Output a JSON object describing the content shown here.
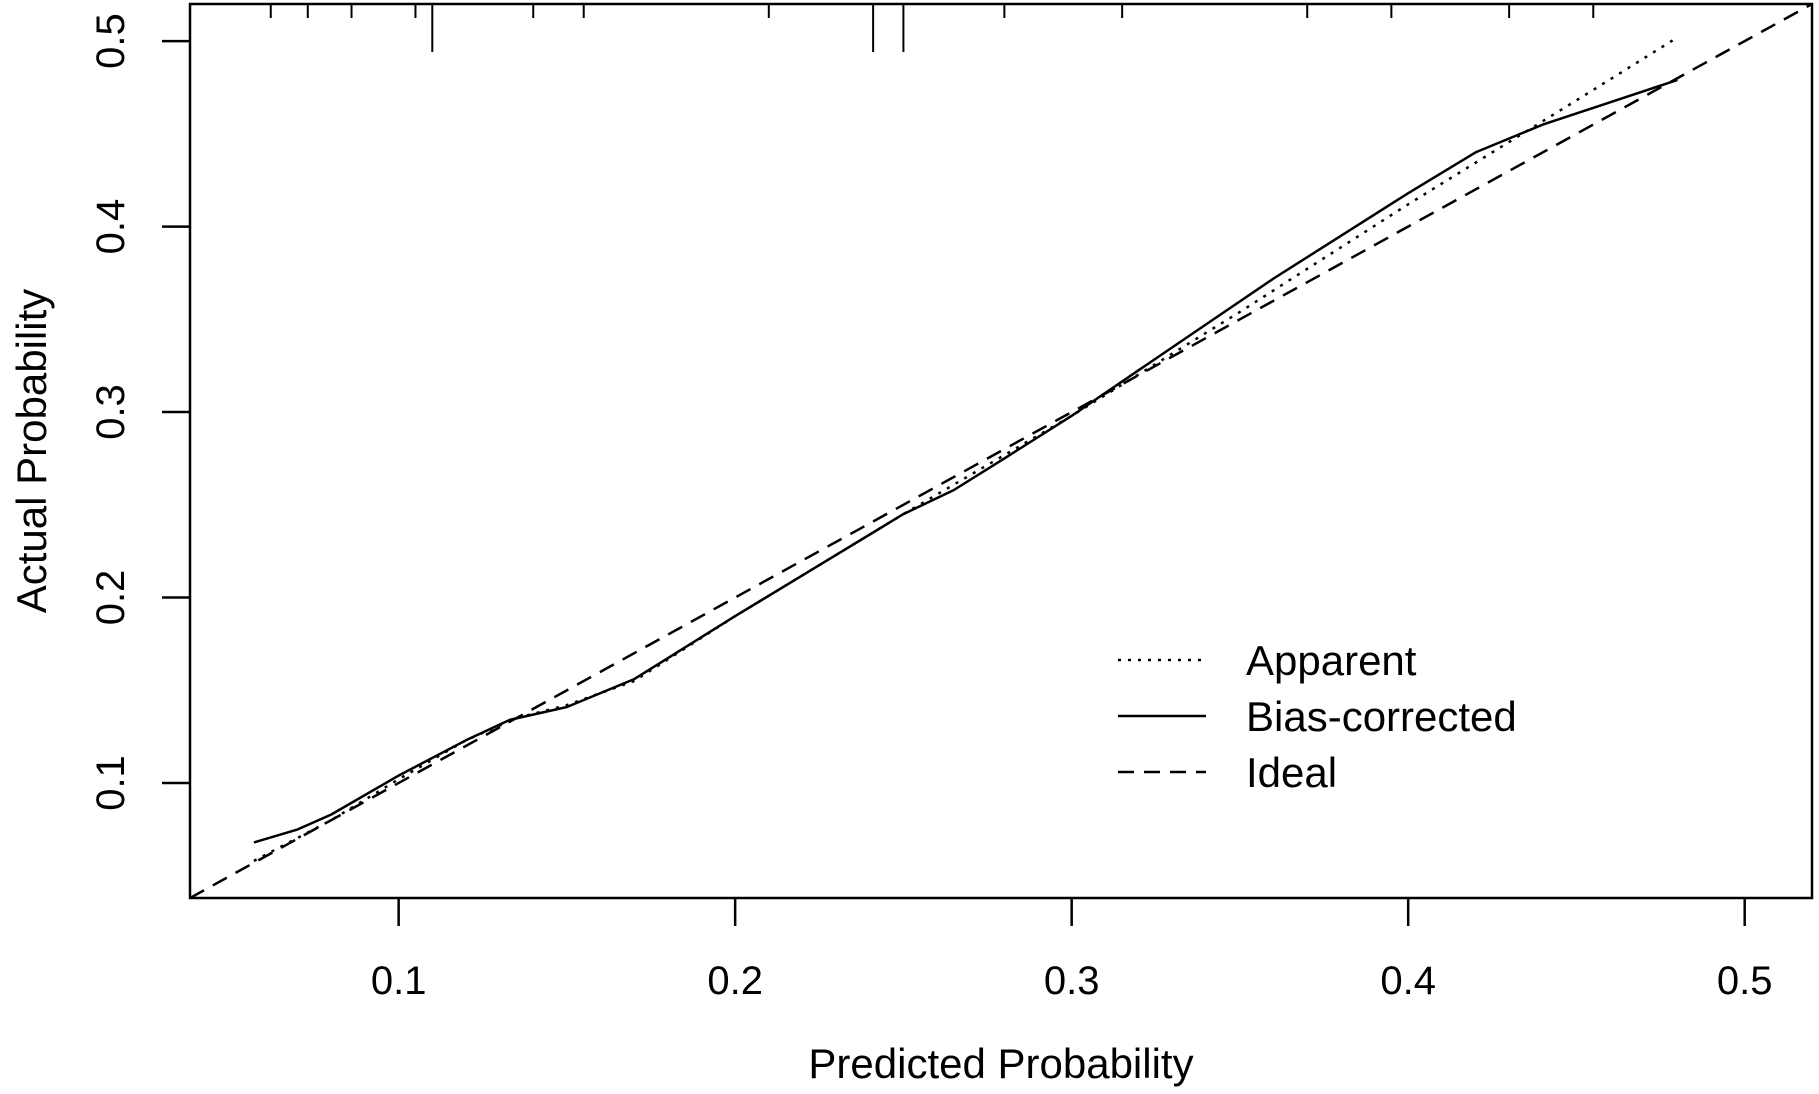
{
  "chart_data": {
    "type": "line",
    "xlabel": "Predicted Probability",
    "ylabel": "Actual Probability",
    "xlim": [
      0.038,
      0.52
    ],
    "ylim": [
      0.038,
      0.52
    ],
    "x_ticks": [
      "0.1",
      "0.2",
      "0.3",
      "0.4",
      "0.5"
    ],
    "y_ticks": [
      "0.1",
      "0.2",
      "0.3",
      "0.4",
      "0.5"
    ],
    "grid": false,
    "legend": {
      "position": "bottom-right",
      "entries": [
        "Apparent",
        "Bias-corrected",
        "Ideal"
      ]
    },
    "series": [
      {
        "name": "Apparent",
        "style": "dotted",
        "x": [
          0.057,
          0.08,
          0.1,
          0.12,
          0.135,
          0.15,
          0.17,
          0.2,
          0.25,
          0.3,
          0.35,
          0.4,
          0.45,
          0.48
        ],
        "y": [
          0.058,
          0.08,
          0.102,
          0.123,
          0.135,
          0.142,
          0.155,
          0.19,
          0.245,
          0.298,
          0.354,
          0.412,
          0.468,
          0.502
        ]
      },
      {
        "name": "Bias-corrected",
        "style": "solid",
        "x": [
          0.057,
          0.07,
          0.08,
          0.1,
          0.12,
          0.133,
          0.15,
          0.17,
          0.2,
          0.22,
          0.25,
          0.265,
          0.28,
          0.3,
          0.33,
          0.36,
          0.4,
          0.42,
          0.44,
          0.46,
          0.48
        ],
        "y": [
          0.068,
          0.075,
          0.083,
          0.104,
          0.123,
          0.134,
          0.141,
          0.156,
          0.19,
          0.212,
          0.245,
          0.258,
          0.275,
          0.298,
          0.335,
          0.372,
          0.418,
          0.44,
          0.455,
          0.467,
          0.479
        ]
      },
      {
        "name": "Ideal",
        "style": "dashed",
        "x": [
          0.038,
          0.52
        ],
        "y": [
          0.038,
          0.52
        ]
      }
    ],
    "rug_top": {
      "short": [
        0.062,
        0.073,
        0.086,
        0.105,
        0.14,
        0.155,
        0.21,
        0.28,
        0.315,
        0.37,
        0.395,
        0.43,
        0.455
      ],
      "long": [
        0.11,
        0.241,
        0.25
      ]
    }
  }
}
